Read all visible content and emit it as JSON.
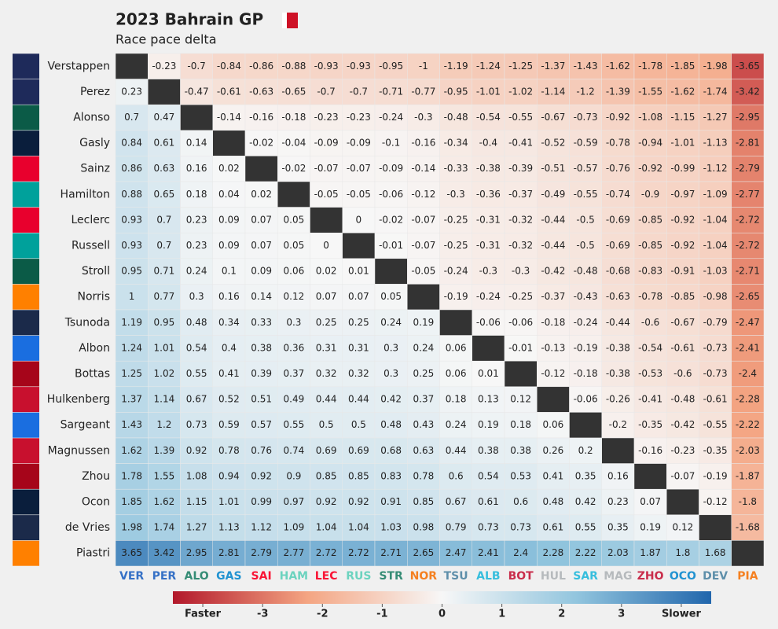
{
  "chart_data": {
    "type": "heatmap",
    "title": "2023 Bahrain GP",
    "subtitle": "Race pace delta",
    "rows": [
      "Verstappen",
      "Perez",
      "Alonso",
      "Gasly",
      "Sainz",
      "Hamilton",
      "Leclerc",
      "Russell",
      "Stroll",
      "Norris",
      "Tsunoda",
      "Albon",
      "Bottas",
      "Hulkenberg",
      "Sargeant",
      "Magnussen",
      "Zhou",
      "Ocon",
      "de Vries",
      "Piastri"
    ],
    "columns": [
      "VER",
      "PER",
      "ALO",
      "GAS",
      "SAI",
      "HAM",
      "LEC",
      "RUS",
      "STR",
      "NOR",
      "TSU",
      "ALB",
      "BOT",
      "HUL",
      "SAR",
      "MAG",
      "ZHO",
      "OCO",
      "DEV",
      "PIA"
    ],
    "column_colors": [
      "#3671C6",
      "#3671C6",
      "#358C75",
      "#2293D1",
      "#F91536",
      "#6CD3BF",
      "#F91536",
      "#6CD3BF",
      "#358C75",
      "#F58020",
      "#5E8FAA",
      "#37BEDD",
      "#C92D4B",
      "#B6BABD",
      "#37BEDD",
      "#B6BABD",
      "#C92D4B",
      "#2293D1",
      "#5E8FAA",
      "#F58020"
    ],
    "values": [
      [
        null,
        -0.23,
        -0.7,
        -0.84,
        -0.86,
        -0.88,
        -0.93,
        -0.93,
        -0.95,
        -1,
        -1.19,
        -1.24,
        -1.25,
        -1.37,
        -1.43,
        -1.62,
        -1.78,
        -1.85,
        -1.98,
        -3.65
      ],
      [
        0.23,
        null,
        -0.47,
        -0.61,
        -0.63,
        -0.65,
        -0.7,
        -0.7,
        -0.71,
        -0.77,
        -0.95,
        -1.01,
        -1.02,
        -1.14,
        -1.2,
        -1.39,
        -1.55,
        -1.62,
        -1.74,
        -3.42
      ],
      [
        0.7,
        0.47,
        null,
        -0.14,
        -0.16,
        -0.18,
        -0.23,
        -0.23,
        -0.24,
        -0.3,
        -0.48,
        -0.54,
        -0.55,
        -0.67,
        -0.73,
        -0.92,
        -1.08,
        -1.15,
        -1.27,
        -2.95
      ],
      [
        0.84,
        0.61,
        0.14,
        null,
        -0.02,
        -0.04,
        -0.09,
        -0.09,
        -0.1,
        -0.16,
        -0.34,
        -0.4,
        -0.41,
        -0.52,
        -0.59,
        -0.78,
        -0.94,
        -1.01,
        -1.13,
        -2.81
      ],
      [
        0.86,
        0.63,
        0.16,
        0.02,
        null,
        -0.02,
        -0.07,
        -0.07,
        -0.09,
        -0.14,
        -0.33,
        -0.38,
        -0.39,
        -0.51,
        -0.57,
        -0.76,
        -0.92,
        -0.99,
        -1.12,
        -2.79
      ],
      [
        0.88,
        0.65,
        0.18,
        0.04,
        0.02,
        null,
        -0.05,
        -0.05,
        -0.06,
        -0.12,
        -0.3,
        -0.36,
        -0.37,
        -0.49,
        -0.55,
        -0.74,
        -0.9,
        -0.97,
        -1.09,
        -2.77
      ],
      [
        0.93,
        0.7,
        0.23,
        0.09,
        0.07,
        0.05,
        null,
        0,
        -0.02,
        -0.07,
        -0.25,
        -0.31,
        -0.32,
        -0.44,
        -0.5,
        -0.69,
        -0.85,
        -0.92,
        -1.04,
        -2.72
      ],
      [
        0.93,
        0.7,
        0.23,
        0.09,
        0.07,
        0.05,
        0,
        null,
        -0.01,
        -0.07,
        -0.25,
        -0.31,
        -0.32,
        -0.44,
        -0.5,
        -0.69,
        -0.85,
        -0.92,
        -1.04,
        -2.72
      ],
      [
        0.95,
        0.71,
        0.24,
        0.1,
        0.09,
        0.06,
        0.02,
        0.01,
        null,
        -0.05,
        -0.24,
        -0.3,
        -0.3,
        -0.42,
        -0.48,
        -0.68,
        -0.83,
        -0.91,
        -1.03,
        -2.71
      ],
      [
        1,
        0.77,
        0.3,
        0.16,
        0.14,
        0.12,
        0.07,
        0.07,
        0.05,
        null,
        -0.19,
        -0.24,
        -0.25,
        -0.37,
        -0.43,
        -0.63,
        -0.78,
        -0.85,
        -0.98,
        -2.65
      ],
      [
        1.19,
        0.95,
        0.48,
        0.34,
        0.33,
        0.3,
        0.25,
        0.25,
        0.24,
        0.19,
        null,
        -0.06,
        -0.06,
        -0.18,
        -0.24,
        -0.44,
        -0.6,
        -0.67,
        -0.79,
        -2.47
      ],
      [
        1.24,
        1.01,
        0.54,
        0.4,
        0.38,
        0.36,
        0.31,
        0.31,
        0.3,
        0.24,
        0.06,
        null,
        -0.01,
        -0.13,
        -0.19,
        -0.38,
        -0.54,
        -0.61,
        -0.73,
        -2.41
      ],
      [
        1.25,
        1.02,
        0.55,
        0.41,
        0.39,
        0.37,
        0.32,
        0.32,
        0.3,
        0.25,
        0.06,
        0.01,
        null,
        -0.12,
        -0.18,
        -0.38,
        -0.53,
        -0.6,
        -0.73,
        -2.4
      ],
      [
        1.37,
        1.14,
        0.67,
        0.52,
        0.51,
        0.49,
        0.44,
        0.44,
        0.42,
        0.37,
        0.18,
        0.13,
        0.12,
        null,
        -0.06,
        -0.26,
        -0.41,
        -0.48,
        -0.61,
        -2.28
      ],
      [
        1.43,
        1.2,
        0.73,
        0.59,
        0.57,
        0.55,
        0.5,
        0.5,
        0.48,
        0.43,
        0.24,
        0.19,
        0.18,
        0.06,
        null,
        -0.2,
        -0.35,
        -0.42,
        -0.55,
        -2.22
      ],
      [
        1.62,
        1.39,
        0.92,
        0.78,
        0.76,
        0.74,
        0.69,
        0.69,
        0.68,
        0.63,
        0.44,
        0.38,
        0.38,
        0.26,
        0.2,
        null,
        -0.16,
        -0.23,
        -0.35,
        -2.03
      ],
      [
        1.78,
        1.55,
        1.08,
        0.94,
        0.92,
        0.9,
        0.85,
        0.85,
        0.83,
        0.78,
        0.6,
        0.54,
        0.53,
        0.41,
        0.35,
        0.16,
        null,
        -0.07,
        -0.19,
        -1.87
      ],
      [
        1.85,
        1.62,
        1.15,
        1.01,
        0.99,
        0.97,
        0.92,
        0.92,
        0.91,
        0.85,
        0.67,
        0.61,
        0.6,
        0.48,
        0.42,
        0.23,
        0.07,
        null,
        -0.12,
        -1.8
      ],
      [
        1.98,
        1.74,
        1.27,
        1.13,
        1.12,
        1.09,
        1.04,
        1.04,
        1.03,
        0.98,
        0.79,
        0.73,
        0.73,
        0.61,
        0.55,
        0.35,
        0.19,
        0.12,
        null,
        -1.68
      ],
      [
        3.65,
        3.42,
        2.95,
        2.81,
        2.79,
        2.77,
        2.72,
        2.72,
        2.71,
        2.65,
        2.47,
        2.41,
        2.4,
        2.28,
        2.22,
        2.03,
        1.87,
        1.8,
        1.68,
        null
      ]
    ],
    "colorbar": {
      "lim": [
        -4.5,
        4.5
      ],
      "ticks": [
        {
          "value": -4,
          "label": "Faster"
        },
        -3,
        -2,
        -1,
        0,
        1,
        2,
        3,
        {
          "value": 4,
          "label": "Slower"
        }
      ]
    }
  }
}
